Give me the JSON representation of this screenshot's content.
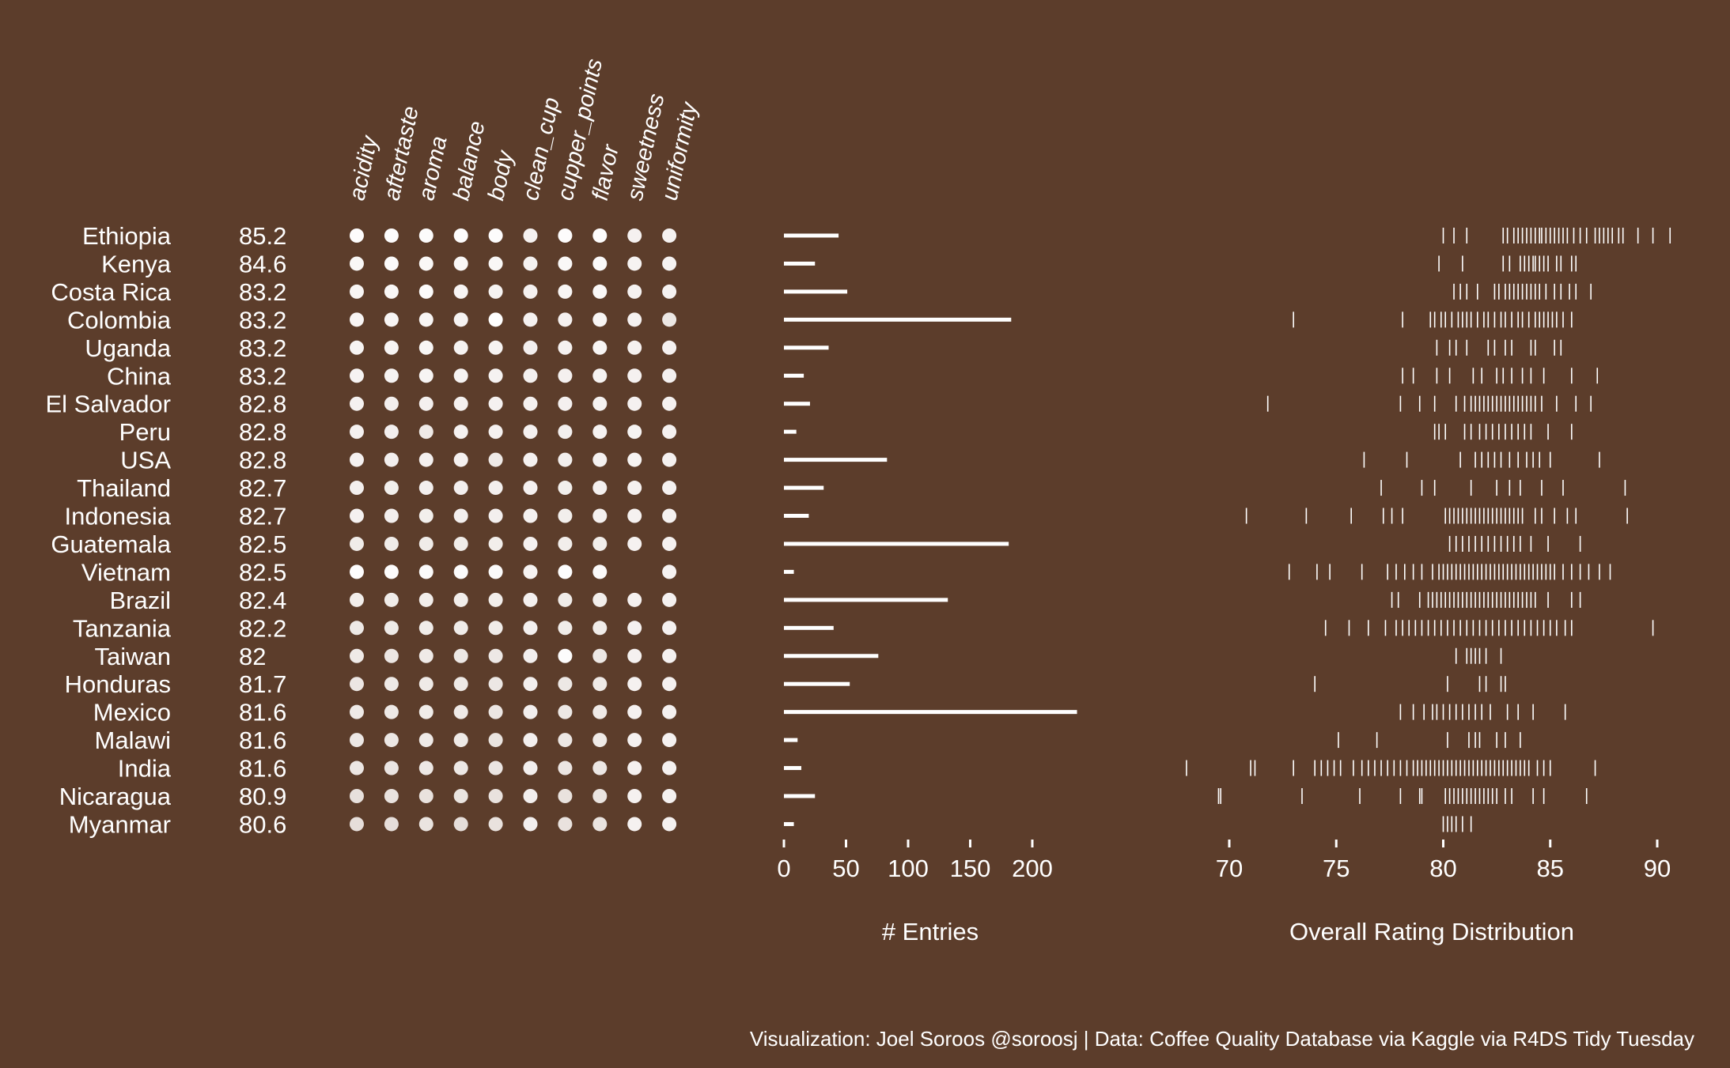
{
  "colors": {
    "background": "#5c3d2b",
    "foreground": "#ffffff",
    "dot_low": "#b49e92",
    "dot_high": "#ffffff"
  },
  "chart_data": {
    "countries": [
      "Ethiopia",
      "Kenya",
      "Costa Rica",
      "Colombia",
      "Uganda",
      "China",
      "El Salvador",
      "Peru",
      "USA",
      "Thailand",
      "Indonesia",
      "Guatemala",
      "Vietnam",
      "Brazil",
      "Tanzania",
      "Taiwan",
      "Honduras",
      "Mexico",
      "Malawi",
      "India",
      "Nicaragua",
      "Myanmar"
    ],
    "overall_rating_labels": [
      "85.2",
      "84.6",
      "83.2",
      "83.2",
      "83.2",
      "83.2",
      "82.8",
      "82.8",
      "82.8",
      "82.7",
      "82.7",
      "82.5",
      "82.5",
      "82.4",
      "82.2",
      "82",
      "81.7",
      "81.6",
      "81.6",
      "81.6",
      "80.9",
      "80.6"
    ],
    "attribute_panel": {
      "type": "heatmap",
      "attributes": [
        "acidity",
        "aftertaste",
        "aroma",
        "balance",
        "body",
        "clean_cup",
        "cupper_points",
        "flavor",
        "sweetness",
        "uniformity"
      ],
      "intensity": [
        [
          0.97,
          0.97,
          0.96,
          0.97,
          0.97,
          0.86,
          0.97,
          0.97,
          0.86,
          0.87
        ],
        [
          0.92,
          0.95,
          0.93,
          0.93,
          0.92,
          0.87,
          0.93,
          0.95,
          0.88,
          0.88
        ],
        [
          0.9,
          0.92,
          0.96,
          0.9,
          0.88,
          0.86,
          0.9,
          0.93,
          0.87,
          0.87
        ],
        [
          0.9,
          0.9,
          0.9,
          0.88,
          1.0,
          0.86,
          0.86,
          0.9,
          0.86,
          0.75
        ],
        [
          0.89,
          0.9,
          0.91,
          0.88,
          0.88,
          0.84,
          0.86,
          0.9,
          0.86,
          0.86
        ],
        [
          0.88,
          0.88,
          0.89,
          0.88,
          0.87,
          0.85,
          0.85,
          0.88,
          0.86,
          0.86
        ],
        [
          0.86,
          0.84,
          0.85,
          0.86,
          0.86,
          0.86,
          0.85,
          0.87,
          0.86,
          0.86
        ],
        [
          0.86,
          0.84,
          0.78,
          0.86,
          0.85,
          0.86,
          0.84,
          0.87,
          0.88,
          0.86
        ],
        [
          0.86,
          0.84,
          0.85,
          0.86,
          0.78,
          0.86,
          0.84,
          0.86,
          0.88,
          0.86
        ],
        [
          0.84,
          0.83,
          0.84,
          0.84,
          0.84,
          0.86,
          0.83,
          0.85,
          0.86,
          0.86
        ],
        [
          0.86,
          0.84,
          0.83,
          0.84,
          0.84,
          0.86,
          0.83,
          0.85,
          0.86,
          0.86
        ],
        [
          0.8,
          0.8,
          0.8,
          0.8,
          0.82,
          0.86,
          0.82,
          0.82,
          0.86,
          0.86
        ],
        [
          0.98,
          0.97,
          0.95,
          0.96,
          0.95,
          0.88,
          0.98,
          0.95,
          null,
          0.88
        ],
        [
          0.82,
          0.8,
          0.82,
          0.82,
          0.82,
          0.85,
          0.8,
          0.82,
          0.86,
          0.86
        ],
        [
          0.77,
          0.79,
          0.8,
          0.8,
          0.8,
          0.85,
          0.8,
          0.8,
          0.86,
          0.86
        ],
        [
          0.78,
          0.74,
          0.78,
          0.76,
          0.76,
          0.84,
          0.97,
          0.76,
          0.86,
          0.86
        ],
        [
          0.74,
          0.77,
          0.78,
          0.77,
          0.75,
          0.84,
          0.76,
          0.78,
          0.86,
          0.86
        ],
        [
          0.78,
          0.77,
          0.8,
          0.78,
          0.74,
          0.84,
          0.76,
          0.78,
          0.86,
          0.86
        ],
        [
          0.76,
          0.75,
          0.78,
          0.78,
          0.72,
          0.84,
          0.75,
          0.78,
          0.86,
          0.86
        ],
        [
          0.74,
          0.73,
          0.76,
          0.76,
          0.73,
          0.84,
          0.73,
          0.75,
          0.86,
          0.86
        ],
        [
          0.68,
          0.7,
          0.7,
          0.72,
          0.7,
          0.84,
          0.7,
          0.72,
          0.86,
          0.86
        ],
        [
          0.66,
          0.66,
          0.72,
          0.66,
          0.7,
          0.84,
          0.7,
          0.72,
          0.86,
          0.86
        ]
      ]
    },
    "entries_panel": {
      "type": "bar",
      "xlabel": "# Entries",
      "xlim": [
        0,
        200
      ],
      "xticks": [
        "0",
        "50",
        "100",
        "150",
        "200"
      ],
      "values": [
        44,
        25,
        51,
        183,
        36,
        16,
        21,
        10,
        83,
        32,
        20,
        181,
        8,
        132,
        40,
        76,
        53,
        236,
        11,
        14,
        25,
        8
      ]
    },
    "distribution_panel": {
      "type": "scatter",
      "xlabel": "Overall Rating Distribution",
      "xlim": [
        70,
        90
      ],
      "xticks": [
        "70",
        "75",
        "80",
        "85",
        "90"
      ],
      "points": [
        [
          80,
          80.5,
          81.1,
          82.8,
          83.0,
          83.3,
          83.5,
          83.7,
          83.9,
          84.1,
          84.3,
          84.5,
          84.6,
          84.8,
          85.0,
          85.2,
          85.4,
          85.6,
          85.8,
          86.1,
          86.4,
          86.7,
          87.1,
          87.3,
          87.5,
          87.7,
          87.9,
          88.2,
          88.4,
          89.1,
          89.8,
          90.6
        ],
        [
          79.8,
          80.9,
          82.8,
          83.1,
          83.6,
          83.8,
          84.0,
          84.2,
          84.3,
          84.5,
          84.7,
          84.9,
          85.3,
          85.5,
          86.0,
          86.2
        ],
        [
          80.5,
          80.8,
          81.1,
          81.6,
          82.4,
          82.6,
          82.9,
          83.1,
          83.3,
          83.5,
          83.7,
          83.9,
          84.1,
          84.3,
          84.5,
          84.8,
          85.2,
          85.5,
          85.9,
          86.2,
          86.9
        ],
        [
          73.0,
          78.1,
          79.4,
          79.6,
          79.9,
          80.1,
          80.4,
          80.7,
          80.9,
          81.1,
          81.3,
          81.6,
          81.9,
          82.1,
          82.4,
          82.7,
          82.9,
          83.2,
          83.5,
          83.7,
          84.0,
          84.3,
          84.5,
          84.7,
          84.9,
          85.1,
          85.3,
          85.6,
          86.0
        ],
        [
          79.7,
          80.3,
          80.6,
          81.1,
          82.1,
          82.4,
          82.9,
          83.2,
          84.1,
          84.3,
          85.2,
          85.5
        ],
        [
          78.1,
          78.6,
          79.7,
          80.3,
          81.4,
          81.8,
          82.5,
          82.8,
          83.2,
          83.7,
          84.1,
          84.7,
          86.0,
          87.2
        ],
        [
          71.8,
          78.0,
          78.9,
          79.6,
          80.6,
          81.0,
          81.3,
          81.5,
          81.7,
          81.9,
          82.1,
          82.3,
          82.5,
          82.7,
          82.9,
          83.1,
          83.3,
          83.5,
          83.7,
          83.9,
          84.1,
          84.3,
          84.6,
          85.3,
          86.2,
          86.9
        ],
        [
          79.6,
          79.8,
          80.1,
          81.0,
          81.3,
          81.7,
          82.0,
          82.3,
          82.6,
          82.9,
          83.2,
          83.5,
          83.8,
          84.1,
          84.9,
          86.0
        ],
        [
          76.3,
          78.3,
          80.8,
          81.5,
          81.8,
          82.1,
          82.4,
          82.7,
          83.1,
          83.5,
          83.9,
          84.2,
          84.5,
          85.0,
          87.3
        ],
        [
          77.1,
          79.0,
          79.6,
          81.3,
          82.5,
          83.1,
          83.6,
          84.6,
          85.6,
          88.5
        ],
        [
          70.8,
          73.6,
          75.7,
          77.2,
          77.6,
          78.1,
          80.1,
          80.3,
          80.5,
          80.7,
          80.9,
          81.1,
          81.3,
          81.5,
          81.7,
          81.9,
          82.1,
          82.3,
          82.5,
          82.7,
          82.9,
          83.1,
          83.3,
          83.5,
          83.7,
          84.3,
          84.6,
          85.2,
          85.8,
          86.2,
          88.6
        ],
        [
          80.3,
          80.6,
          80.9,
          81.2,
          81.5,
          81.8,
          82.1,
          82.4,
          82.7,
          83.0,
          83.3,
          83.6,
          84.1,
          84.9,
          86.4
        ],
        [
          72.8,
          74.1,
          74.7,
          76.2,
          77.4,
          77.8,
          78.2,
          78.6,
          79.0,
          79.5,
          79.8,
          80.0,
          80.2,
          80.4,
          80.6,
          80.8,
          81.0,
          81.2,
          81.4,
          81.6,
          81.8,
          82.0,
          82.2,
          82.4,
          82.6,
          82.8,
          83.0,
          83.2,
          83.4,
          83.6,
          83.8,
          84.0,
          84.2,
          84.4,
          84.6,
          84.8,
          85.0,
          85.2,
          85.6,
          86.0,
          86.4,
          86.8,
          87.3,
          87.8
        ],
        [
          77.6,
          77.9,
          78.9,
          79.3,
          79.5,
          79.7,
          79.9,
          80.1,
          80.3,
          80.5,
          80.7,
          80.9,
          81.1,
          81.3,
          81.5,
          81.7,
          81.9,
          82.1,
          82.3,
          82.5,
          82.7,
          82.9,
          83.1,
          83.3,
          83.5,
          83.7,
          83.9,
          84.1,
          84.3,
          84.9,
          86.0,
          86.4
        ],
        [
          74.5,
          75.6,
          76.5,
          77.3,
          77.8,
          78.1,
          78.4,
          78.7,
          79.0,
          79.3,
          79.6,
          79.9,
          80.2,
          80.5,
          80.8,
          81.1,
          81.4,
          81.7,
          82.0,
          82.3,
          82.6,
          82.9,
          83.2,
          83.5,
          83.8,
          84.1,
          84.4,
          84.7,
          85.0,
          85.3,
          85.7,
          86.0,
          89.8
        ],
        [
          80.6,
          81.1,
          81.3,
          81.5,
          81.7,
          82.0,
          82.7
        ],
        [
          74.0,
          80.2,
          81.7,
          82.0,
          82.7,
          82.9
        ],
        [
          78.0,
          78.6,
          79.1,
          79.5,
          79.7,
          80.0,
          80.3,
          80.6,
          80.9,
          81.2,
          81.5,
          81.8,
          82.2,
          83.0,
          83.5,
          84.2,
          85.7
        ],
        [
          75.1,
          76.9,
          80.2,
          81.2,
          81.5,
          81.7,
          82.5,
          82.9,
          83.6
        ],
        [
          68.0,
          71.0,
          71.2,
          73.0,
          74.0,
          74.3,
          74.6,
          74.9,
          75.2,
          75.8,
          76.2,
          76.5,
          76.8,
          77.1,
          77.4,
          77.7,
          78.0,
          78.3,
          78.6,
          78.8,
          79.0,
          79.2,
          79.4,
          79.6,
          79.8,
          80.0,
          80.2,
          80.4,
          80.6,
          80.8,
          81.0,
          81.2,
          81.4,
          81.6,
          81.8,
          82.0,
          82.2,
          82.4,
          82.6,
          82.8,
          83.0,
          83.2,
          83.4,
          83.6,
          83.8,
          84.0,
          84.4,
          84.7,
          85.0,
          87.1
        ],
        [
          69.5,
          69.6,
          73.4,
          76.1,
          78.0,
          78.9,
          79.0,
          80.1,
          80.3,
          80.5,
          80.7,
          80.9,
          81.1,
          81.3,
          81.5,
          81.7,
          81.9,
          82.1,
          82.3,
          82.5,
          82.9,
          83.2,
          84.2,
          84.7,
          86.7
        ],
        [
          80.0,
          80.2,
          80.4,
          80.6,
          80.9,
          81.3
        ]
      ]
    }
  },
  "caption": "Visualization: Joel Soroos @soroosj  |  Data: Coffee Quality Database via Kaggle via R4DS Tidy Tuesday"
}
